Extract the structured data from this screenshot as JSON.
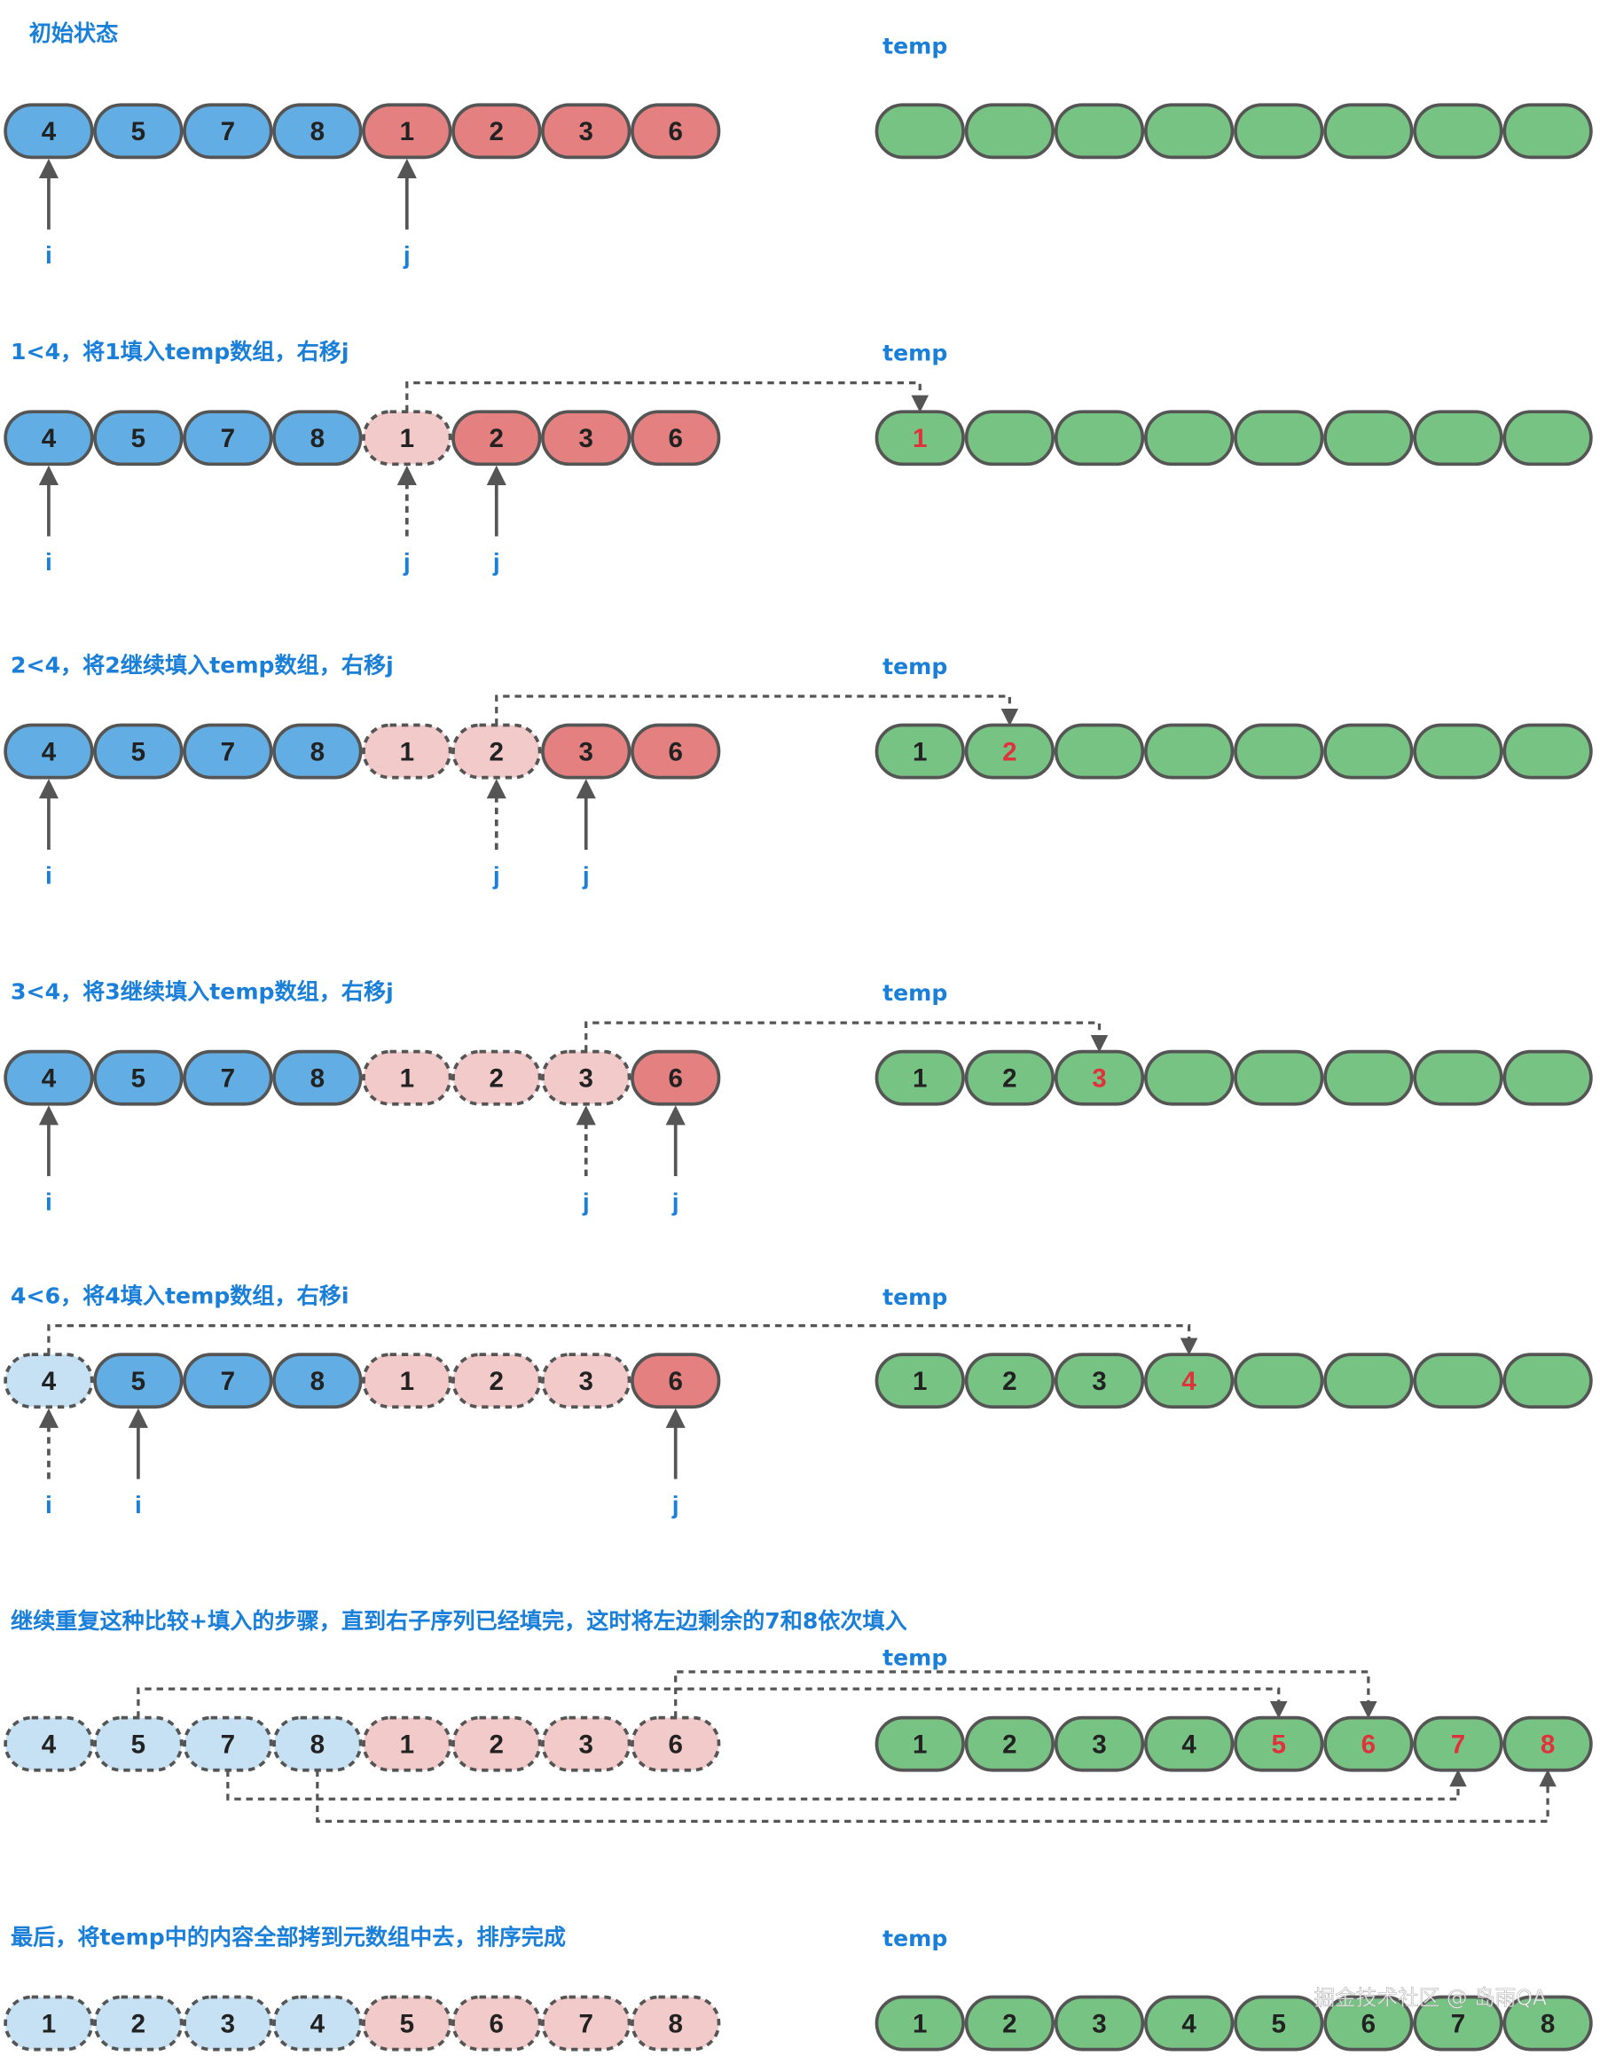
{
  "colors": {
    "left": "#62aee4",
    "right": "#e58080",
    "left_done": "#c6e1f3",
    "right_done": "#f2caca",
    "temp": "#77c384",
    "highlight_text": "#e0323c",
    "title": "#1a7fd9",
    "stroke": "#555555"
  },
  "temp_label": "temp",
  "watermark": "掘金技术社区 @ 岛雨QA",
  "steps": [
    {
      "title": "初始状态",
      "cells": [
        {
          "v": "4",
          "s": "left"
        },
        {
          "v": "5",
          "s": "left"
        },
        {
          "v": "7",
          "s": "left"
        },
        {
          "v": "8",
          "s": "left"
        },
        {
          "v": "1",
          "s": "right"
        },
        {
          "v": "2",
          "s": "right"
        },
        {
          "v": "3",
          "s": "right"
        },
        {
          "v": "6",
          "s": "right"
        }
      ],
      "temp": [
        "",
        "",
        "",
        "",
        "",
        "",
        "",
        ""
      ],
      "new": [],
      "pointers": [
        {
          "label": "i",
          "index": 0,
          "dashed": false
        },
        {
          "label": "j",
          "index": 4,
          "dashed": false
        }
      ],
      "moves": []
    },
    {
      "title": "1<4，将1填入temp数组，右移j",
      "cells": [
        {
          "v": "4",
          "s": "left"
        },
        {
          "v": "5",
          "s": "left"
        },
        {
          "v": "7",
          "s": "left"
        },
        {
          "v": "8",
          "s": "left"
        },
        {
          "v": "1",
          "s": "right_done"
        },
        {
          "v": "2",
          "s": "right"
        },
        {
          "v": "3",
          "s": "right"
        },
        {
          "v": "6",
          "s": "right"
        }
      ],
      "temp": [
        "1",
        "",
        "",
        "",
        "",
        "",
        "",
        ""
      ],
      "new": [
        0
      ],
      "pointers": [
        {
          "label": "i",
          "index": 0,
          "dashed": false
        },
        {
          "label": "j",
          "index": 4,
          "dashed": true
        },
        {
          "label": "j",
          "index": 5,
          "dashed": false
        }
      ],
      "moves": [
        {
          "from": 4,
          "to": 0,
          "route": "above"
        }
      ]
    },
    {
      "title": "2<4，将2继续填入temp数组，右移j",
      "cells": [
        {
          "v": "4",
          "s": "left"
        },
        {
          "v": "5",
          "s": "left"
        },
        {
          "v": "7",
          "s": "left"
        },
        {
          "v": "8",
          "s": "left"
        },
        {
          "v": "1",
          "s": "right_done"
        },
        {
          "v": "2",
          "s": "right_done"
        },
        {
          "v": "3",
          "s": "right"
        },
        {
          "v": "6",
          "s": "right"
        }
      ],
      "temp": [
        "1",
        "2",
        "",
        "",
        "",
        "",
        "",
        ""
      ],
      "new": [
        1
      ],
      "pointers": [
        {
          "label": "i",
          "index": 0,
          "dashed": false
        },
        {
          "label": "j",
          "index": 5,
          "dashed": true
        },
        {
          "label": "j",
          "index": 6,
          "dashed": false
        }
      ],
      "moves": [
        {
          "from": 5,
          "to": 1,
          "route": "above"
        }
      ]
    },
    {
      "title": "3<4，将3继续填入temp数组，右移j",
      "cells": [
        {
          "v": "4",
          "s": "left"
        },
        {
          "v": "5",
          "s": "left"
        },
        {
          "v": "7",
          "s": "left"
        },
        {
          "v": "8",
          "s": "left"
        },
        {
          "v": "1",
          "s": "right_done"
        },
        {
          "v": "2",
          "s": "right_done"
        },
        {
          "v": "3",
          "s": "right_done"
        },
        {
          "v": "6",
          "s": "right"
        }
      ],
      "temp": [
        "1",
        "2",
        "3",
        "",
        "",
        "",
        "",
        ""
      ],
      "new": [
        2
      ],
      "pointers": [
        {
          "label": "i",
          "index": 0,
          "dashed": false
        },
        {
          "label": "j",
          "index": 6,
          "dashed": true
        },
        {
          "label": "j",
          "index": 7,
          "dashed": false
        }
      ],
      "moves": [
        {
          "from": 6,
          "to": 2,
          "route": "above"
        }
      ]
    },
    {
      "title": "4<6，将4填入temp数组，右移i",
      "cells": [
        {
          "v": "4",
          "s": "left_done"
        },
        {
          "v": "5",
          "s": "left"
        },
        {
          "v": "7",
          "s": "left"
        },
        {
          "v": "8",
          "s": "left"
        },
        {
          "v": "1",
          "s": "right_done"
        },
        {
          "v": "2",
          "s": "right_done"
        },
        {
          "v": "3",
          "s": "right_done"
        },
        {
          "v": "6",
          "s": "right"
        }
      ],
      "temp": [
        "1",
        "2",
        "3",
        "4",
        "",
        "",
        "",
        ""
      ],
      "new": [
        3
      ],
      "pointers": [
        {
          "label": "i",
          "index": 0,
          "dashed": true
        },
        {
          "label": "i",
          "index": 1,
          "dashed": false
        },
        {
          "label": "j",
          "index": 7,
          "dashed": false
        }
      ],
      "moves": [
        {
          "from": 0,
          "to": 3,
          "route": "above"
        }
      ]
    },
    {
      "title": "继续重复这种比较+填入的步骤，直到右子序列已经填完，这时将左边剩余的7和8依次填入",
      "cells": [
        {
          "v": "4",
          "s": "left_done"
        },
        {
          "v": "5",
          "s": "left_done"
        },
        {
          "v": "7",
          "s": "left_done"
        },
        {
          "v": "8",
          "s": "left_done"
        },
        {
          "v": "1",
          "s": "right_done"
        },
        {
          "v": "2",
          "s": "right_done"
        },
        {
          "v": "3",
          "s": "right_done"
        },
        {
          "v": "6",
          "s": "right_done"
        }
      ],
      "temp": [
        "1",
        "2",
        "3",
        "4",
        "5",
        "6",
        "7",
        "8"
      ],
      "new": [
        4,
        5,
        6,
        7
      ],
      "pointers": [],
      "moves": [
        {
          "from": 1,
          "to": 4,
          "route": "above"
        },
        {
          "from": 7,
          "to": 5,
          "route": "above"
        },
        {
          "from": 2,
          "to": 6,
          "route": "below"
        },
        {
          "from": 3,
          "to": 7,
          "route": "below"
        }
      ]
    },
    {
      "title": "最后，将temp中的内容全部拷到元数组中去，排序完成",
      "cells": [
        {
          "v": "1",
          "s": "left_done"
        },
        {
          "v": "2",
          "s": "left_done"
        },
        {
          "v": "3",
          "s": "left_done"
        },
        {
          "v": "4",
          "s": "left_done"
        },
        {
          "v": "5",
          "s": "right_done"
        },
        {
          "v": "6",
          "s": "right_done"
        },
        {
          "v": "7",
          "s": "right_done"
        },
        {
          "v": "8",
          "s": "right_done"
        }
      ],
      "temp": [
        "1",
        "2",
        "3",
        "4",
        "5",
        "6",
        "7",
        "8"
      ],
      "new": [],
      "pointers": [],
      "moves": []
    }
  ]
}
